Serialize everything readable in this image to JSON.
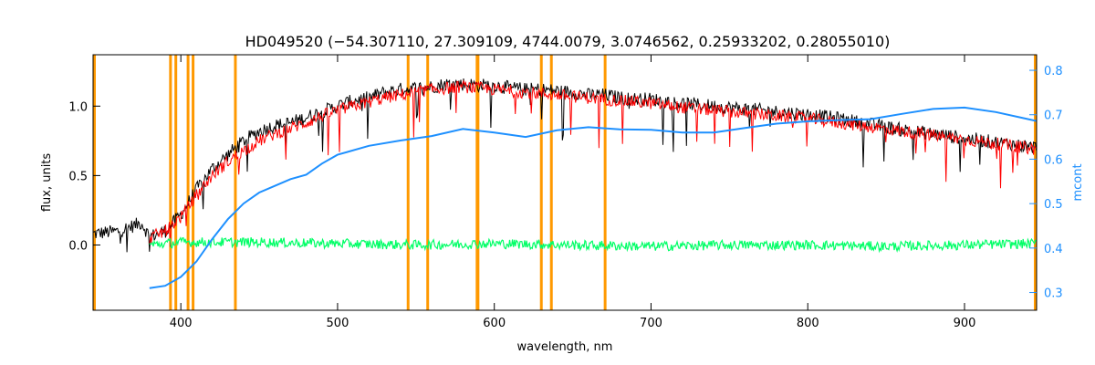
{
  "chart_data": {
    "type": "line",
    "title": "HD049520    (−54.307110, 27.309109, 4744.0079, 3.0746562, 0.25933202, 0.28055010)",
    "xlabel": "wavelength, nm",
    "ylabel": "flux, units",
    "y2label": "mcont",
    "xlim": [
      344,
      946
    ],
    "ylim": [
      -0.47,
      1.37
    ],
    "y2lim": [
      0.26,
      0.835
    ],
    "x_ticks": [
      400,
      500,
      600,
      700,
      800,
      900
    ],
    "y_ticks": [
      0.0,
      0.5,
      1.0
    ],
    "y_tick_labels": [
      "0.0",
      "0.5",
      "1.0"
    ],
    "y2_ticks": [
      0.3,
      0.4,
      0.5,
      0.6,
      0.7,
      0.8
    ],
    "y2_tick_labels": [
      "0.3",
      "0.4",
      "0.5",
      "0.6",
      "0.7",
      "0.8"
    ],
    "grid": false,
    "colors": {
      "observed": "#000000",
      "model": "#ff0000",
      "residual": "#00ff66",
      "mcont": "#1e90ff",
      "masks": "#ff9900",
      "mask_fill": "#ffff00",
      "right_axis": "#1e90ff"
    },
    "masked_wavelengths": [
      393.4,
      396.8,
      404.6,
      407.8,
      434.8,
      545.0,
      557.5,
      589.0,
      589.6,
      630.0,
      636.4,
      670.7
    ],
    "series": [
      {
        "axis": "left",
        "x": [
          344,
          360,
          375,
          380,
          390,
          400,
          410,
          420,
          430,
          440,
          450,
          460,
          470,
          480,
          490,
          500,
          510,
          520,
          530,
          540,
          550,
          560,
          570,
          580,
          590,
          600,
          610,
          620,
          630,
          640,
          650,
          660,
          670,
          680,
          690,
          700,
          720,
          740,
          760,
          780,
          800,
          820,
          840,
          860,
          880,
          900,
          920,
          946
        ],
        "y": [
          0.08,
          0.1,
          0.16,
          0.06,
          0.1,
          0.22,
          0.4,
          0.55,
          0.65,
          0.75,
          0.82,
          0.86,
          0.88,
          0.92,
          0.96,
          1.0,
          1.04,
          1.06,
          1.1,
          1.12,
          1.13,
          1.14,
          1.16,
          1.16,
          1.15,
          1.15,
          1.13,
          1.12,
          1.12,
          1.11,
          1.1,
          1.08,
          1.08,
          1.06,
          1.05,
          1.05,
          1.02,
          1.0,
          0.98,
          0.96,
          0.94,
          0.91,
          0.87,
          0.83,
          0.8,
          0.77,
          0.74,
          0.7
        ]
      },
      {
        "axis": "left",
        "x": [
          380,
          390,
          400,
          410,
          420,
          430,
          440,
          450,
          460,
          470,
          480,
          490,
          500,
          510,
          520,
          530,
          540,
          550,
          560,
          570,
          580,
          590,
          600,
          610,
          620,
          630,
          640,
          650,
          660,
          670,
          680,
          690,
          700,
          720,
          740,
          760,
          780,
          800,
          820,
          840,
          860,
          880,
          900,
          920,
          946
        ],
        "y": [
          0.05,
          0.1,
          0.2,
          0.36,
          0.5,
          0.6,
          0.68,
          0.75,
          0.8,
          0.84,
          0.88,
          0.93,
          0.97,
          1.0,
          1.03,
          1.06,
          1.08,
          1.1,
          1.12,
          1.13,
          1.14,
          1.13,
          1.12,
          1.11,
          1.1,
          1.09,
          1.08,
          1.07,
          1.06,
          1.05,
          1.04,
          1.03,
          1.02,
          0.99,
          0.97,
          0.95,
          0.93,
          0.91,
          0.88,
          0.85,
          0.82,
          0.79,
          0.76,
          0.73,
          0.69
        ]
      },
      {
        "axis": "left",
        "x": [
          380,
          400,
          450,
          500,
          550,
          600,
          650,
          700,
          750,
          800,
          850,
          900,
          946
        ],
        "y": [
          0.0,
          0.02,
          0.02,
          0.01,
          0.0,
          0.01,
          0.0,
          -0.01,
          0.0,
          0.0,
          -0.01,
          0.0,
          0.01
        ]
      },
      {
        "axis": "right",
        "x": [
          380,
          390,
          400,
          410,
          420,
          430,
          440,
          450,
          460,
          470,
          480,
          490,
          500,
          520,
          540,
          560,
          580,
          600,
          620,
          640,
          660,
          680,
          700,
          720,
          740,
          760,
          780,
          800,
          820,
          840,
          860,
          880,
          900,
          920,
          946
        ],
        "y": [
          0.31,
          0.315,
          0.335,
          0.37,
          0.42,
          0.465,
          0.5,
          0.525,
          0.54,
          0.555,
          0.565,
          0.59,
          0.61,
          0.63,
          0.642,
          0.652,
          0.668,
          0.66,
          0.65,
          0.665,
          0.672,
          0.667,
          0.666,
          0.66,
          0.66,
          0.67,
          0.68,
          0.685,
          0.688,
          0.69,
          0.702,
          0.713,
          0.716,
          0.706,
          0.686
        ]
      }
    ]
  }
}
